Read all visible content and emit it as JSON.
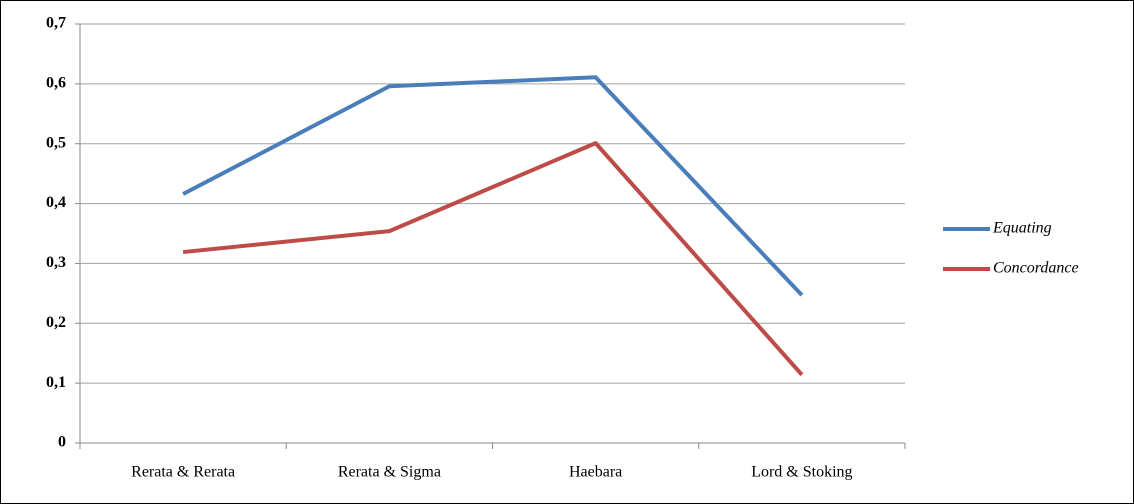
{
  "chart_data": {
    "type": "line",
    "categories": [
      "Rerata & Rerata",
      "Rerata & Sigma",
      "Haebara",
      "Lord & Stoking"
    ],
    "series": [
      {
        "name": "Equating",
        "color": "#4a7ebb",
        "values": [
          0.416,
          0.596,
          0.611,
          0.247
        ]
      },
      {
        "name": "Concordance",
        "color": "#be4b48",
        "values": [
          0.319,
          0.354,
          0.501,
          0.114
        ]
      }
    ],
    "ylim": [
      0,
      0.7
    ],
    "yticks": [
      0,
      {
        "value": 0.1,
        "label": "0,1"
      },
      {
        "value": 0.2,
        "label": "0,2"
      },
      {
        "value": 0.3,
        "label": "0,3"
      },
      {
        "value": 0.4,
        "label": "0,4"
      },
      {
        "value": 0.5,
        "label": "0,5"
      },
      {
        "value": 0.6,
        "label": "0,6"
      },
      {
        "value": 0.7,
        "label": "0,7"
      }
    ],
    "grid": true,
    "legend": "right"
  }
}
